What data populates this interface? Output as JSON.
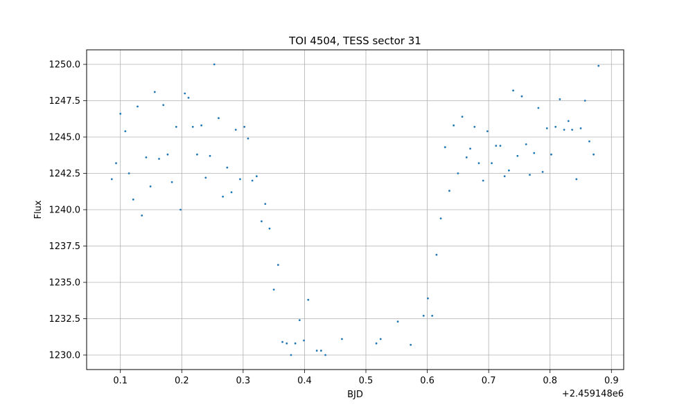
{
  "chart_data": {
    "type": "scatter",
    "title": "TOI 4504, TESS sector 31",
    "xlabel": "BJD",
    "ylabel": "Flux",
    "x_offset_label": "+2.459148e6",
    "xlim": [
      0.045,
      0.92
    ],
    "ylim": [
      1229.0,
      1251.0
    ],
    "xticks": [
      0.1,
      0.2,
      0.3,
      0.4,
      0.5,
      0.6,
      0.7,
      0.8,
      0.9
    ],
    "xtick_labels": [
      "0.1",
      "0.2",
      "0.3",
      "0.4",
      "0.5",
      "0.6",
      "0.7",
      "0.8",
      "0.9"
    ],
    "yticks": [
      1230.0,
      1232.5,
      1235.0,
      1237.5,
      1240.0,
      1242.5,
      1245.0,
      1247.5,
      1250.0
    ],
    "ytick_labels": [
      "1230.0",
      "1232.5",
      "1235.0",
      "1237.5",
      "1240.0",
      "1242.5",
      "1245.0",
      "1247.5",
      "1250.0"
    ],
    "grid": true,
    "marker_color": "#1f77b4",
    "series": [
      {
        "x": [
          0.086,
          0.093,
          0.1,
          0.108,
          0.114,
          0.121,
          0.128,
          0.135,
          0.142,
          0.149,
          0.156,
          0.163,
          0.17,
          0.177,
          0.184,
          0.191,
          0.198,
          0.205,
          0.211,
          0.218,
          0.225,
          0.232,
          0.239,
          0.246,
          0.253,
          0.26,
          0.267,
          0.274,
          0.281,
          0.288,
          0.295,
          0.302,
          0.308,
          0.315,
          0.322,
          0.33,
          0.336,
          0.343,
          0.35,
          0.357,
          0.364,
          0.371,
          0.378,
          0.385,
          0.392,
          0.399,
          0.406,
          0.42,
          0.427,
          0.434,
          0.461,
          0.517,
          0.524,
          0.552,
          0.573,
          0.594,
          0.601,
          0.608,
          0.615,
          0.622,
          0.629,
          0.636,
          0.643,
          0.65,
          0.657,
          0.664,
          0.67,
          0.677,
          0.684,
          0.691,
          0.698,
          0.705,
          0.712,
          0.719,
          0.726,
          0.733,
          0.74,
          0.747,
          0.754,
          0.761,
          0.767,
          0.774,
          0.781,
          0.788,
          0.795,
          0.802,
          0.809,
          0.816,
          0.823,
          0.83,
          0.836,
          0.843,
          0.85,
          0.857,
          0.864,
          0.871,
          0.879
        ],
        "y": [
          1242.1,
          1243.2,
          1246.6,
          1245.4,
          1242.5,
          1240.7,
          1247.1,
          1239.6,
          1243.6,
          1241.6,
          1248.1,
          1243.5,
          1247.2,
          1243.8,
          1241.9,
          1245.7,
          1240.0,
          1248.0,
          1247.7,
          1245.7,
          1243.8,
          1245.8,
          1242.2,
          1243.7,
          1250.0,
          1246.3,
          1240.9,
          1242.9,
          1241.2,
          1245.5,
          1242.1,
          1245.7,
          1244.9,
          1242.0,
          1242.3,
          1239.2,
          1240.4,
          1238.7,
          1234.5,
          1236.2,
          1230.9,
          1230.8,
          1230.0,
          1230.8,
          1232.4,
          1231.0,
          1233.8,
          1230.3,
          1230.3,
          1230.0,
          1231.1,
          1230.8,
          1231.1,
          1232.3,
          1230.7,
          1232.7,
          1233.9,
          1232.7,
          1236.9,
          1239.4,
          1244.3,
          1241.3,
          1245.8,
          1242.5,
          1246.4,
          1243.6,
          1244.2,
          1245.7,
          1243.2,
          1242.0,
          1245.4,
          1243.2,
          1244.4,
          1244.4,
          1242.3,
          1242.7,
          1248.2,
          1243.7,
          1247.8,
          1244.5,
          1242.4,
          1243.9,
          1247.0,
          1242.6,
          1245.6,
          1243.8,
          1245.7,
          1247.6,
          1245.5,
          1246.1,
          1245.5,
          1242.1,
          1245.6,
          1247.5,
          1244.7,
          1243.8,
          1249.9
        ]
      }
    ]
  }
}
